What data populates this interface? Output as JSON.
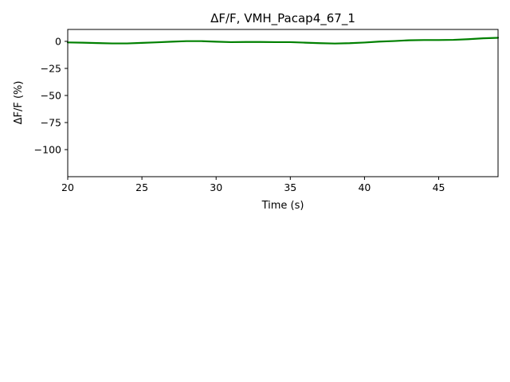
{
  "chart_data": {
    "type": "line",
    "title": "ΔF/F, VMH_Pacap4_67_1",
    "xlabel": "Time (s)",
    "ylabel": "ΔF/F (%)",
    "xlim": [
      20,
      49
    ],
    "ylim": [
      -125,
      11
    ],
    "xticks": [
      20,
      25,
      30,
      35,
      40,
      45
    ],
    "xtick_labels": [
      "20",
      "25",
      "30",
      "35",
      "40",
      "45"
    ],
    "yticks": [
      0,
      -25,
      -50,
      -75,
      -100
    ],
    "ytick_labels": [
      "0",
      "−25",
      "−50",
      "−75",
      "−100"
    ],
    "grid": false,
    "series": [
      {
        "color": "#008000",
        "x": [
          20,
          21,
          22,
          23,
          24,
          25,
          26,
          27,
          28,
          29,
          30,
          31,
          32,
          33,
          34,
          35,
          36,
          37,
          38,
          39,
          40,
          41,
          42,
          43,
          44,
          45,
          46,
          47,
          48,
          49
        ],
        "y": [
          -1.0,
          -1.2,
          -1.6,
          -1.9,
          -1.9,
          -1.4,
          -0.9,
          -0.3,
          0.2,
          0.2,
          -0.3,
          -0.7,
          -0.6,
          -0.6,
          -0.7,
          -0.7,
          -1.2,
          -1.7,
          -2.0,
          -1.7,
          -1.1,
          -0.2,
          0.3,
          1.0,
          1.2,
          1.2,
          1.4,
          2.0,
          2.8,
          3.3
        ]
      }
    ]
  }
}
